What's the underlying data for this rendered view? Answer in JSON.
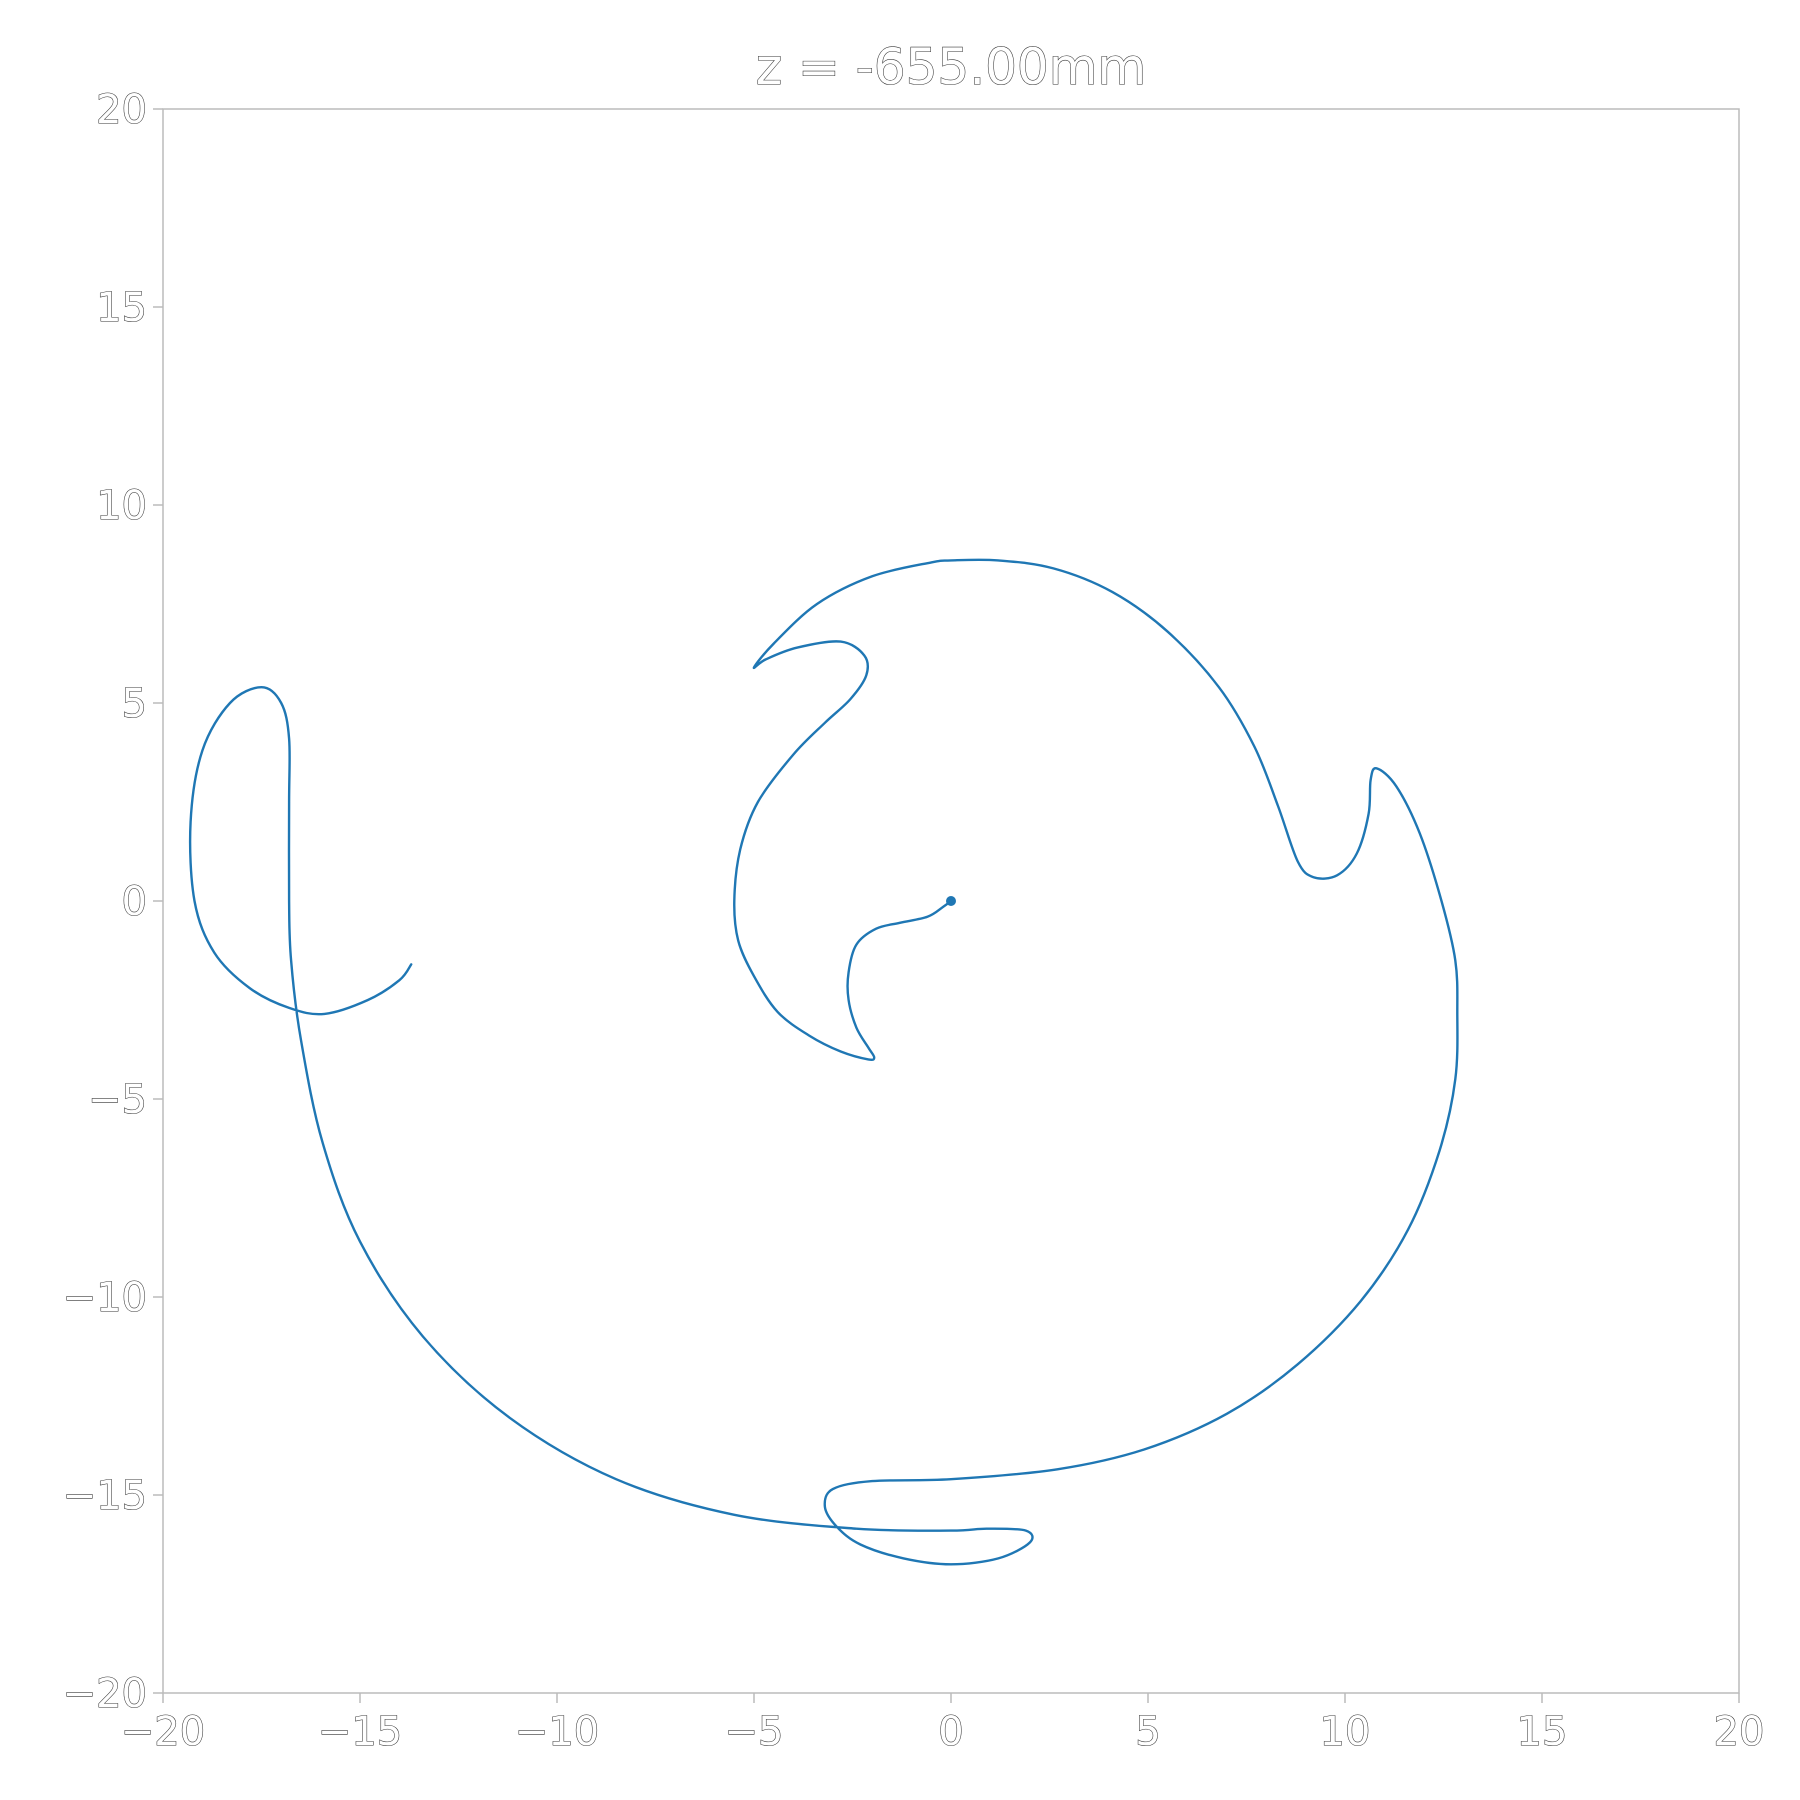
{
  "chart_data": {
    "type": "line",
    "title": "z = -655.00mm",
    "xlabel": "",
    "ylabel": "",
    "xlim": [
      -20,
      20
    ],
    "ylim": [
      -20,
      20
    ],
    "xticks": [
      "−20",
      "−15",
      "−10",
      "−5",
      "0",
      "5",
      "10",
      "15",
      "20"
    ],
    "yticks": [
      "−20",
      "−15",
      "−10",
      "−5",
      "0",
      "5",
      "10",
      "15",
      "20"
    ],
    "xtick_values": [
      -20,
      -15,
      -10,
      -5,
      0,
      5,
      10,
      15,
      20
    ],
    "ytick_values": [
      -20,
      -15,
      -10,
      -5,
      0,
      5,
      10,
      15,
      20
    ],
    "grid": false,
    "legend": false,
    "series_color": "#1f77b4",
    "series": [
      {
        "points": [
          [
            0.0,
            0.0
          ],
          [
            -0.2,
            -0.15
          ],
          [
            -0.6,
            -0.4
          ],
          [
            -1.3,
            -0.55
          ],
          [
            -1.9,
            -0.7
          ],
          [
            -2.4,
            -1.1
          ],
          [
            -2.6,
            -1.8
          ],
          [
            -2.6,
            -2.5
          ],
          [
            -2.4,
            -3.2
          ],
          [
            -2.1,
            -3.7
          ],
          [
            -1.95,
            -3.95
          ],
          [
            -2.1,
            -4.0
          ],
          [
            -2.8,
            -3.8
          ],
          [
            -3.6,
            -3.4
          ],
          [
            -4.4,
            -2.8
          ],
          [
            -5.0,
            -1.9
          ],
          [
            -5.4,
            -1.0
          ],
          [
            -5.5,
            0.0
          ],
          [
            -5.35,
            1.3
          ],
          [
            -4.9,
            2.5
          ],
          [
            -4.0,
            3.7
          ],
          [
            -3.2,
            4.5
          ],
          [
            -2.55,
            5.1
          ],
          [
            -2.15,
            5.7
          ],
          [
            -2.2,
            6.2
          ],
          [
            -2.8,
            6.55
          ],
          [
            -3.9,
            6.4
          ],
          [
            -4.7,
            6.1
          ],
          [
            -5.0,
            5.9
          ],
          [
            -4.5,
            6.5
          ],
          [
            -3.4,
            7.5
          ],
          [
            -2.0,
            8.2
          ],
          [
            -0.5,
            8.55
          ],
          [
            0.0,
            8.6
          ],
          [
            1.2,
            8.6
          ],
          [
            2.6,
            8.4
          ],
          [
            4.1,
            7.8
          ],
          [
            5.5,
            6.8
          ],
          [
            6.8,
            5.4
          ],
          [
            7.7,
            3.9
          ],
          [
            8.3,
            2.4
          ],
          [
            8.8,
            1.0
          ],
          [
            9.2,
            0.6
          ],
          [
            9.8,
            0.65
          ],
          [
            10.3,
            1.2
          ],
          [
            10.6,
            2.2
          ],
          [
            10.65,
            3.05
          ],
          [
            10.8,
            3.35
          ],
          [
            11.3,
            2.9
          ],
          [
            11.9,
            1.7
          ],
          [
            12.45,
            0.0
          ],
          [
            12.8,
            -1.5
          ],
          [
            12.85,
            -2.8
          ],
          [
            12.8,
            -4.5
          ],
          [
            12.4,
            -6.3
          ],
          [
            11.6,
            -8.3
          ],
          [
            10.4,
            -10.1
          ],
          [
            8.8,
            -11.7
          ],
          [
            7.0,
            -12.95
          ],
          [
            4.9,
            -13.85
          ],
          [
            2.7,
            -14.35
          ],
          [
            0.0,
            -14.6
          ],
          [
            -2.0,
            -14.65
          ],
          [
            -3.0,
            -14.85
          ],
          [
            -3.2,
            -15.3
          ],
          [
            -2.9,
            -15.8
          ],
          [
            -2.3,
            -16.25
          ],
          [
            -1.2,
            -16.6
          ],
          [
            0.0,
            -16.75
          ],
          [
            1.2,
            -16.6
          ],
          [
            2.0,
            -16.2
          ],
          [
            1.9,
            -15.9
          ],
          [
            0.9,
            -15.85
          ],
          [
            0.0,
            -15.9
          ],
          [
            -2.4,
            -15.85
          ],
          [
            -5.5,
            -15.5
          ],
          [
            -8.5,
            -14.6
          ],
          [
            -11.2,
            -13.05
          ],
          [
            -13.4,
            -11.0
          ],
          [
            -15.0,
            -8.6
          ],
          [
            -15.95,
            -6.1
          ],
          [
            -16.5,
            -3.5
          ],
          [
            -16.75,
            -1.5
          ],
          [
            -16.8,
            0.0
          ],
          [
            -16.8,
            2.5
          ],
          [
            -16.8,
            4.1
          ],
          [
            -17.0,
            5.0
          ],
          [
            -17.5,
            5.4
          ],
          [
            -18.3,
            5.0
          ],
          [
            -19.0,
            3.8
          ],
          [
            -19.3,
            2.0
          ],
          [
            -19.2,
            0.0
          ],
          [
            -18.7,
            -1.3
          ],
          [
            -17.8,
            -2.2
          ],
          [
            -16.8,
            -2.7
          ],
          [
            -15.9,
            -2.85
          ],
          [
            -14.8,
            -2.5
          ],
          [
            -14.0,
            -2.0
          ],
          [
            -13.7,
            -1.6
          ]
        ]
      }
    ],
    "center_marker": [
      0,
      0
    ]
  }
}
